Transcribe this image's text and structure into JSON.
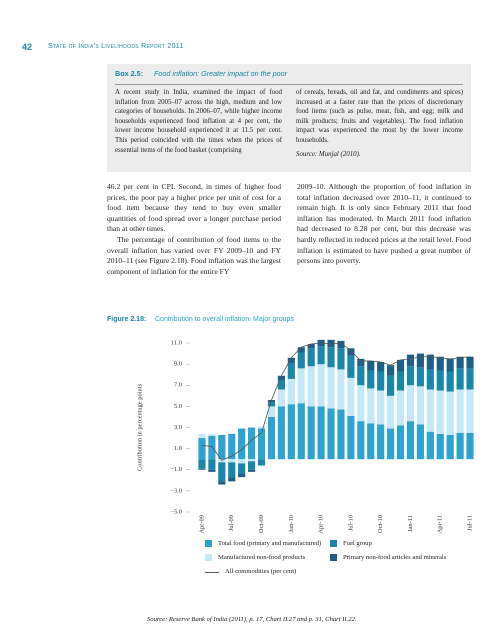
{
  "header": {
    "page_number": "42",
    "running_title": "State of India's Livelihoods Report 2011"
  },
  "box": {
    "label": "Box 2.5:",
    "title": "Food inflation: Greater impact on the poor",
    "left_text": "A recent study in India, examined the impact of food inflation from 2005–07 across the high, medium and low categories of households. In 2006–07, while higher income households experienced food inflation at 4 per cent, the lower income household experienced it at 11.5 per cent. This period coincided with the times when the prices of essential items of the food basket (comprising",
    "right_text": "of cereals, breads, oil and fat, and condiments and spices) increased at a faster rate than the prices of discretionary food items (such as pulse, meat, fish, and egg; milk and milk products; fruits and vegetables). The food inflation impact was experienced the most by the lower income households.",
    "source": "Source: Munjal (2010)."
  },
  "body": {
    "left_paragraphs": [
      "46.2 per cent in CPI. Second, in times of higher food prices, the poor pay a higher price per unit of cost for a food item because they tend to buy even smaller quantities of food spread over a longer purchase period than at other times.",
      "The percentage of contribution of food items to the overall inflation has varied over FY 2009–10 and FY 2010–11 (see Figure 2.18). Food inflation was the largest component of inflation for the entire FY"
    ],
    "right_paragraphs": [
      "2009–10. Although the proportion of food inflation in total inflation decreased over 2010–11, it continued to remain high. It is only since February 2011 that food inflation has moderated. In March 2011 food inflation had decreased to 8.28 per cent, but this decrease was hardly reflected in reduced prices at the retail level. Food inflation is estimated to have pushed a great number of persons into poverty."
    ]
  },
  "figure": {
    "label": "Figure 2.18:",
    "caption": "Contribution to overall inflation: Major groups",
    "source": "Source: Reserve Bank of India (2011), p. 17, Chart II.27 and p. 31, Chart II.22."
  },
  "chart_data": {
    "type": "bar",
    "stacked": true,
    "y_label": "Contribution in percentage points",
    "categories": [
      "Apr-09",
      null,
      null,
      "Jul-09",
      null,
      null,
      "Oct-09",
      null,
      null,
      "Jan-10",
      null,
      null,
      "Apr-10",
      null,
      null,
      "Jul-10",
      null,
      null,
      "Oct-10",
      null,
      null,
      "Jan-11",
      null,
      null,
      "Apr-11",
      null,
      null,
      "Jul-11"
    ],
    "ylim": [
      -5,
      11
    ],
    "yticks": [
      {
        "value": 11,
        "label": "11.0"
      },
      {
        "value": 9,
        "label": "9.0"
      },
      {
        "value": 7,
        "label": "7.0"
      },
      {
        "value": 5,
        "label": "5.0"
      },
      {
        "value": 3,
        "label": "3.0"
      },
      {
        "value": 1,
        "label": "1.0"
      },
      {
        "value": -1,
        "label": "−1.0"
      },
      {
        "value": -3,
        "label": "−3.0"
      },
      {
        "value": -5,
        "label": "−5.0"
      }
    ],
    "series": [
      {
        "name": "Total food (primary and manufactured)",
        "color": "#2ea3cf",
        "values": [
          2.0,
          2.2,
          2.3,
          2.4,
          2.9,
          3.0,
          2.9,
          4.0,
          5.0,
          5.2,
          5.3,
          5.0,
          5.0,
          4.8,
          4.7,
          4.1,
          3.6,
          3.4,
          3.3,
          2.9,
          3.2,
          3.6,
          3.3,
          2.6,
          2.4,
          2.3,
          2.5,
          2.5
        ]
      },
      {
        "name": "Manufactured non-food products",
        "color": "#c5e8f6",
        "values": [
          0.4,
          0.2,
          -0.3,
          -0.3,
          -0.4,
          -0.2,
          0.2,
          1.0,
          1.6,
          2.4,
          3.3,
          3.8,
          4.0,
          3.9,
          3.8,
          3.6,
          3.4,
          3.3,
          3.2,
          3.1,
          3.3,
          3.4,
          3.6,
          4.0,
          4.1,
          4.1,
          4.1,
          4.1
        ]
      },
      {
        "name": "Fuel group",
        "color": "#1a86a8",
        "values": [
          -0.9,
          -1.0,
          -1.8,
          -1.4,
          -1.0,
          -0.8,
          -0.6,
          0.4,
          0.9,
          1.5,
          1.5,
          1.7,
          1.7,
          1.9,
          2.0,
          2.1,
          1.8,
          1.7,
          1.8,
          1.9,
          1.8,
          1.8,
          1.8,
          1.9,
          1.9,
          1.9,
          2.0,
          2.0
        ]
      },
      {
        "name": "Primary non-food articles and minerals",
        "color": "#1d5f86",
        "values": [
          -0.1,
          -0.2,
          -0.3,
          -0.4,
          -0.3,
          -0.2,
          0.0,
          0.2,
          0.4,
          0.5,
          0.5,
          0.4,
          0.6,
          0.7,
          0.7,
          0.7,
          0.7,
          0.9,
          0.9,
          1.0,
          1.1,
          1.1,
          1.3,
          1.4,
          1.3,
          1.2,
          1.1,
          1.1
        ]
      }
    ],
    "line": {
      "name": "All commodities (per cent)",
      "color": "#555555",
      "values": [
        1.3,
        1.2,
        -0.1,
        0.3,
        0.9,
        1.8,
        2.5,
        5.6,
        7.9,
        9.6,
        10.6,
        10.9,
        11.0,
        10.9,
        11.0,
        10.3,
        9.3,
        9.3,
        9.2,
        8.9,
        9.4,
        9.5,
        9.7,
        9.7,
        9.6,
        9.5,
        9.6,
        9.7
      ]
    }
  }
}
